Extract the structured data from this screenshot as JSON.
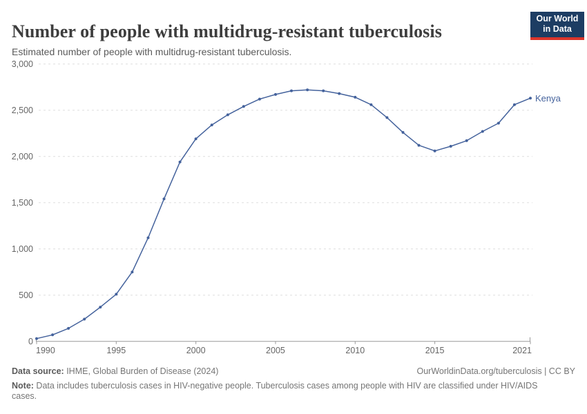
{
  "header": {
    "title": "Number of people with multidrug-resistant tuberculosis",
    "subtitle": "Estimated number of people with multidrug-resistant tuberculosis.",
    "logo_line1": "Our World",
    "logo_line2": "in Data"
  },
  "chart_data": {
    "type": "line",
    "title": "Number of people with multidrug-resistant tuberculosis",
    "subtitle": "Estimated number of people with multidrug-resistant tuberculosis.",
    "x": [
      1990,
      1991,
      1992,
      1993,
      1994,
      1995,
      1996,
      1997,
      1998,
      1999,
      2000,
      2001,
      2002,
      2003,
      2004,
      2005,
      2006,
      2007,
      2008,
      2009,
      2010,
      2011,
      2012,
      2013,
      2014,
      2015,
      2016,
      2017,
      2018,
      2019,
      2020,
      2021
    ],
    "series": [
      {
        "name": "Kenya",
        "color": "#44629c",
        "values": [
          30,
          70,
          140,
          240,
          370,
          510,
          750,
          1120,
          1540,
          1940,
          2190,
          2340,
          2450,
          2540,
          2620,
          2670,
          2710,
          2720,
          2710,
          2680,
          2640,
          2560,
          2420,
          2260,
          2120,
          2060,
          2110,
          2170,
          2270,
          2360,
          2560,
          2630
        ]
      }
    ],
    "xlabel": "",
    "ylabel": "",
    "xlim": [
      1990,
      2021
    ],
    "ylim": [
      0,
      3000
    ],
    "yticks": [
      0,
      500,
      1000,
      1500,
      2000,
      2500,
      3000
    ],
    "ytick_labels": [
      "0",
      "500",
      "1,000",
      "1,500",
      "2,000",
      "2,500",
      "3,000"
    ],
    "xticks": [
      1990,
      1995,
      2000,
      2005,
      2010,
      2015,
      2021
    ],
    "xtick_labels": [
      "1990",
      "1995",
      "2000",
      "2005",
      "2010",
      "2015",
      "2021"
    ],
    "grid": true,
    "legend_position": "end-of-line"
  },
  "footer": {
    "source_label": "Data source:",
    "source_text": " IHME, Global Burden of Disease (2024)",
    "link": "OurWorldinData.org/tuberculosis | CC BY",
    "note_label": "Note:",
    "note_text": " Data includes tuberculosis cases in HIV-negative people. Tuberculosis cases among people with HIV are classified under HIV/AIDS cases."
  },
  "colors": {
    "line": "#44629c",
    "grid": "#dddddd",
    "axis": "#999999",
    "tick_text": "#666666",
    "title_text": "#3d3d3d",
    "logo_bg": "#1d3d63",
    "logo_red": "#dc352b"
  }
}
